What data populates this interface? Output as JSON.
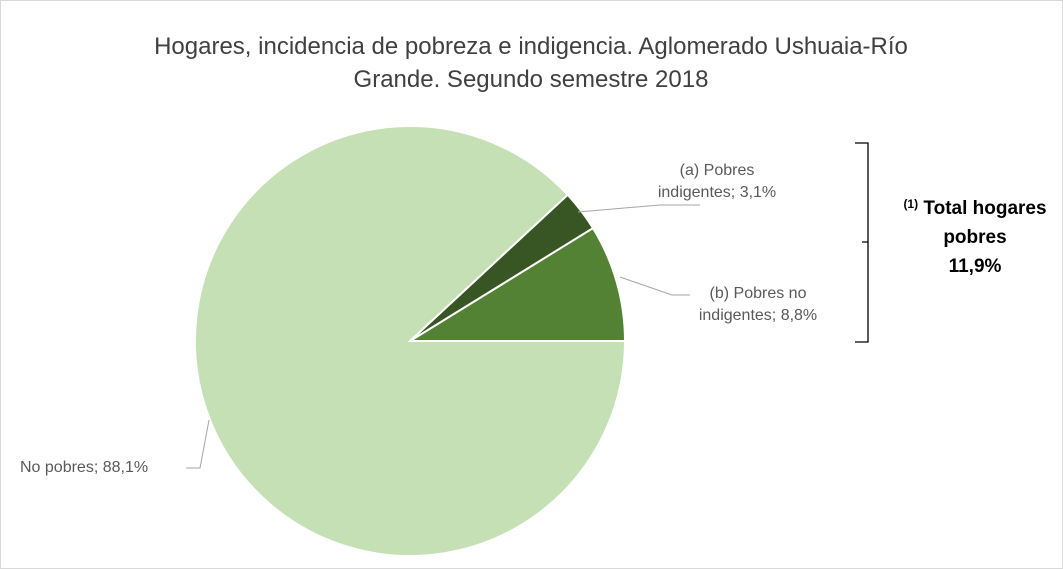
{
  "chart_data": {
    "type": "pie",
    "title": "Hogares, incidencia de pobreza e indigencia. Aglomerado Ushuaia-Río Grande. Segundo semestre 2018",
    "categories": [
      "(b) Pobres no indigentes",
      "(a) Pobres indigentes",
      "No pobres"
    ],
    "values": [
      8.8,
      3.1,
      88.1
    ],
    "value_labels": [
      "8,8%",
      "3,1%",
      "88,1%"
    ],
    "label_separator": "; ",
    "colors": [
      "#548235",
      "#375623",
      "#c5e0b4"
    ],
    "annotation": {
      "superscript": "(1)",
      "text": "Total hogares pobres",
      "value_label": "11,9%"
    }
  }
}
